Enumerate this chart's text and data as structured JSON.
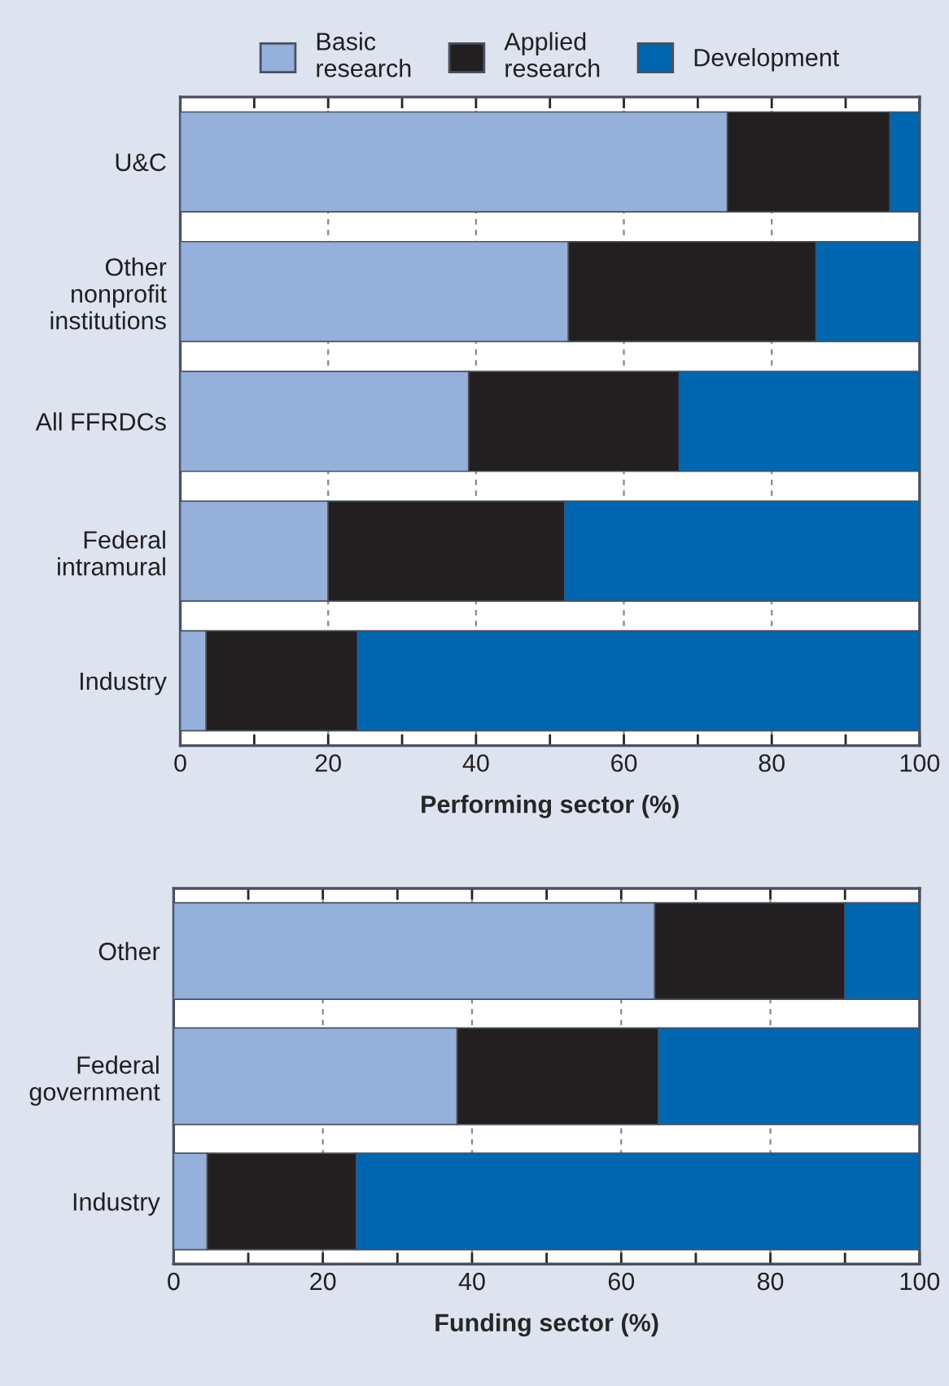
{
  "chart_data": [
    {
      "type": "bar",
      "orientation": "horizontal",
      "stacked": true,
      "xlabel": "Performing sector (%)",
      "categories": [
        "U&C",
        "Other\nnonprofit\ninstitutions",
        "All FFRDCs",
        "Federal\nintramural",
        "Industry"
      ],
      "series": [
        {
          "name": "Basic\nresearch",
          "color": "#95b0da",
          "values": [
            74,
            52.5,
            39,
            20,
            3.5
          ]
        },
        {
          "name": "Applied\nresearch",
          "color": "#231f20",
          "values": [
            22,
            33.5,
            28.5,
            32,
            20.5
          ]
        },
        {
          "name": "Development",
          "color": "#0066b0",
          "values": [
            4,
            14,
            32.5,
            48,
            76
          ]
        }
      ],
      "xlim": [
        0,
        100
      ],
      "xticks": [
        0,
        20,
        40,
        60,
        80,
        100
      ],
      "grid": "x",
      "legend": "top"
    },
    {
      "type": "bar",
      "orientation": "horizontal",
      "stacked": true,
      "xlabel": "Funding sector (%)",
      "categories": [
        "Other",
        "Federal\ngovernment",
        "Industry"
      ],
      "series": [
        {
          "color": "#95b0da",
          "values": [
            64.5,
            38,
            4.5
          ]
        },
        {
          "color": "#231f20",
          "values": [
            25.5,
            27,
            20
          ]
        },
        {
          "color": "#0066b0",
          "values": [
            10,
            35,
            75.5
          ]
        }
      ],
      "xlim": [
        0,
        100
      ],
      "xticks": [
        0,
        20,
        40,
        60,
        80,
        100
      ],
      "grid": "x"
    }
  ]
}
